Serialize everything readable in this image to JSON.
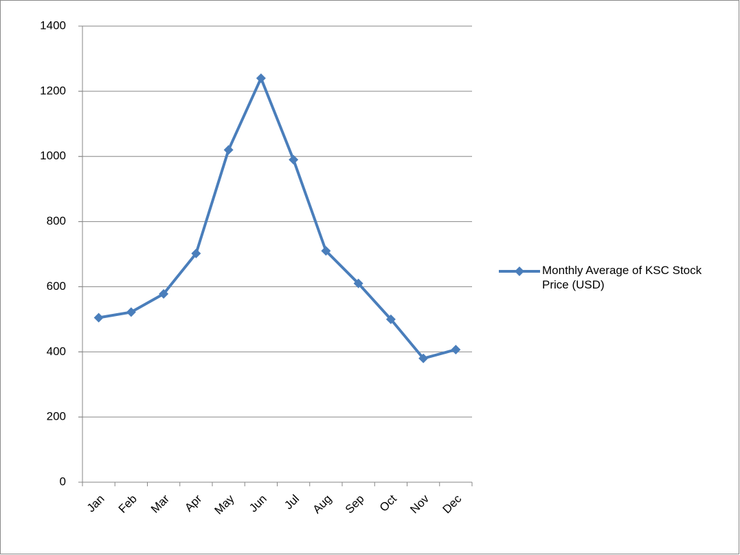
{
  "chart_data": {
    "type": "line",
    "categories": [
      "Jan",
      "Feb",
      "Mar",
      "Apr",
      "May",
      "Jun",
      "Jul",
      "Aug",
      "Sep",
      "Oct",
      "Nov",
      "Dec"
    ],
    "series": [
      {
        "name": "Monthly Average of KSC Stock Price (USD)",
        "color": "#4a7ebb",
        "values": [
          505,
          522,
          578,
          702,
          1020,
          1240,
          990,
          710,
          610,
          500,
          380,
          407
        ]
      }
    ],
    "ylim": [
      0,
      1400
    ],
    "yticks": [
      0,
      200,
      400,
      600,
      800,
      1000,
      1200,
      1400
    ],
    "grid": true,
    "legend": "right"
  }
}
